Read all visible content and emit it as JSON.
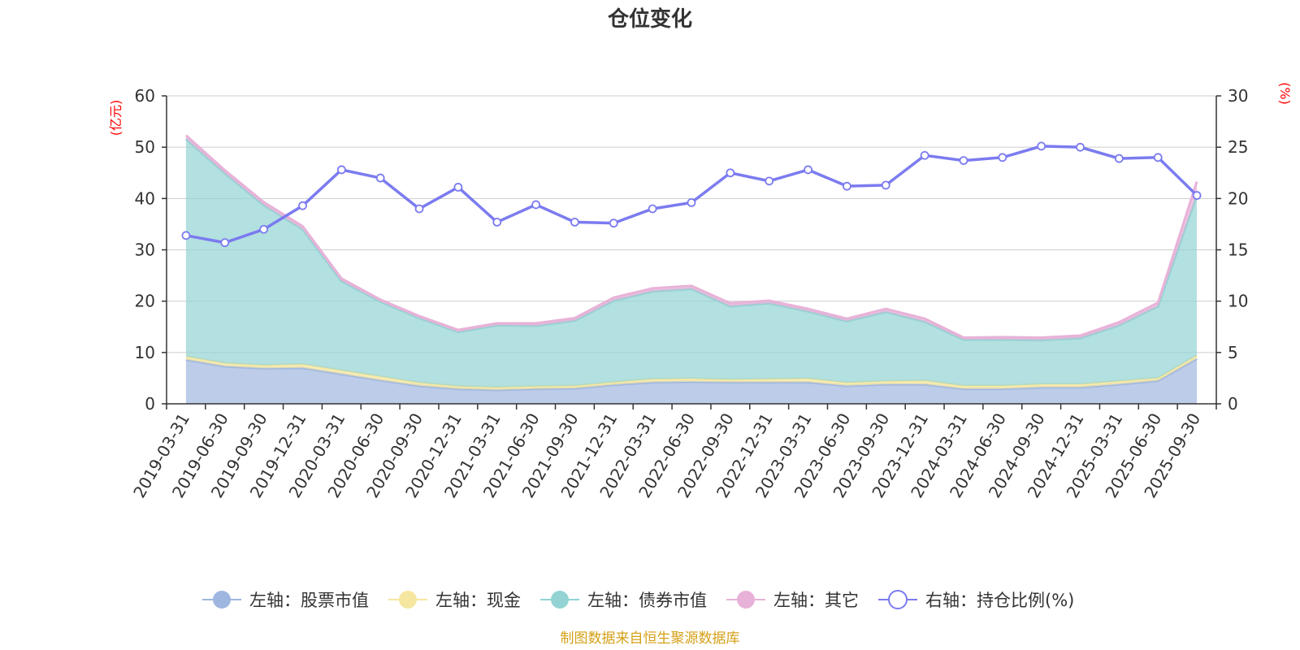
{
  "chart_data": {
    "type": "area",
    "title": "仓位变化",
    "left_axis_label": "(亿元)",
    "right_axis_label": "(%)",
    "left_ylim": [
      0,
      60
    ],
    "left_ticks": [
      0,
      10,
      20,
      30,
      40,
      50,
      60
    ],
    "right_ylim": [
      0,
      30
    ],
    "right_ticks": [
      0,
      5,
      10,
      15,
      20,
      25,
      30
    ],
    "categories": [
      "2019-03-31",
      "2019-06-30",
      "2019-09-30",
      "2019-12-31",
      "2020-03-31",
      "2020-06-30",
      "2020-09-30",
      "2020-12-31",
      "2021-03-31",
      "2021-06-30",
      "2021-09-30",
      "2021-12-31",
      "2022-03-31",
      "2022-06-30",
      "2022-09-30",
      "2022-12-31",
      "2023-03-31",
      "2023-06-30",
      "2023-09-30",
      "2023-12-31",
      "2024-03-31",
      "2024-06-30",
      "2024-09-30",
      "2024-12-31",
      "2025-03-31",
      "2025-06-30",
      "2025-09-30"
    ],
    "stacked_series": [
      {
        "name": "左轴：股票市值",
        "axis": "left",
        "color": "#9fb7e0",
        "values": [
          8.6,
          7.3,
          6.9,
          7.0,
          5.8,
          4.6,
          3.5,
          2.9,
          2.7,
          2.9,
          3.0,
          3.7,
          4.2,
          4.3,
          4.2,
          4.2,
          4.2,
          3.5,
          3.8,
          3.8,
          2.9,
          2.9,
          3.2,
          3.2,
          3.8,
          4.5,
          8.8
        ]
      },
      {
        "name": "左轴：现金",
        "axis": "left",
        "color": "#f6e7a0",
        "values": [
          0.6,
          0.6,
          0.6,
          0.7,
          0.7,
          0.7,
          0.6,
          0.5,
          0.5,
          0.5,
          0.5,
          0.5,
          0.6,
          0.6,
          0.5,
          0.6,
          0.7,
          0.6,
          0.6,
          0.7,
          0.6,
          0.6,
          0.6,
          0.6,
          0.6,
          0.5,
          0.6
        ]
      },
      {
        "name": "左轴：债券市值",
        "axis": "left",
        "color": "#93d3d3",
        "values": [
          42.4,
          37.0,
          31.2,
          26.3,
          17.4,
          14.6,
          12.6,
          10.6,
          12.1,
          11.8,
          12.7,
          15.9,
          17.1,
          17.5,
          14.3,
          14.8,
          13.1,
          12.0,
          13.5,
          11.5,
          9.0,
          9.0,
          8.6,
          9.0,
          10.9,
          14.0,
          31.3
        ]
      },
      {
        "name": "左轴：其它",
        "axis": "left",
        "color": "#e8b2d8",
        "values": [
          0.7,
          0.6,
          0.6,
          0.6,
          0.5,
          0.4,
          0.4,
          0.4,
          0.4,
          0.5,
          0.5,
          0.6,
          0.6,
          0.6,
          0.6,
          0.5,
          0.5,
          0.5,
          0.6,
          0.6,
          0.4,
          0.5,
          0.5,
          0.5,
          0.6,
          0.7,
          2.6
        ]
      }
    ],
    "line_series": {
      "name": "右轴：持仓比例(%)",
      "axis": "right",
      "color": "#7b7bf0",
      "values": [
        16.4,
        15.7,
        17.0,
        19.3,
        22.8,
        22.0,
        19.0,
        21.1,
        17.7,
        19.4,
        17.7,
        17.6,
        19.0,
        19.6,
        22.5,
        21.7,
        22.8,
        21.2,
        21.3,
        24.2,
        23.7,
        24.0,
        25.1,
        25.0,
        23.9,
        24.0,
        20.3
      ]
    }
  },
  "legend": [
    {
      "label": "左轴：股票市值",
      "color": "#9fb7e0",
      "style": "filled"
    },
    {
      "label": "左轴：现金",
      "color": "#f6e7a0",
      "style": "filled"
    },
    {
      "label": "左轴：债券市值",
      "color": "#93d3d3",
      "style": "filled"
    },
    {
      "label": "左轴：其它",
      "color": "#e8b2d8",
      "style": "filled"
    },
    {
      "label": "右轴：持仓比例(%)",
      "color": "#7b7bf0",
      "style": "hollow"
    }
  ],
  "source_note": "制图数据来自恒生聚源数据库",
  "source_color": "#d4a017"
}
